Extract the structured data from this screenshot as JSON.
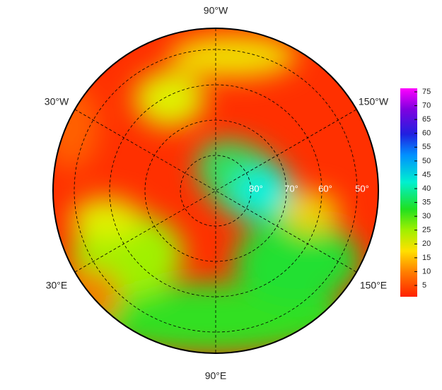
{
  "map": {
    "longitude_labels": [
      "90°W",
      "30°W",
      "150°W",
      "30°E",
      "150°E",
      "90°E"
    ],
    "latitude_labels": [
      "80°",
      "70°",
      "60°",
      "50°"
    ],
    "colorbar": {
      "ticks": [
        5,
        10,
        15,
        20,
        25,
        30,
        35,
        40,
        45,
        50,
        55,
        60,
        65,
        70,
        75
      ]
    }
  }
}
